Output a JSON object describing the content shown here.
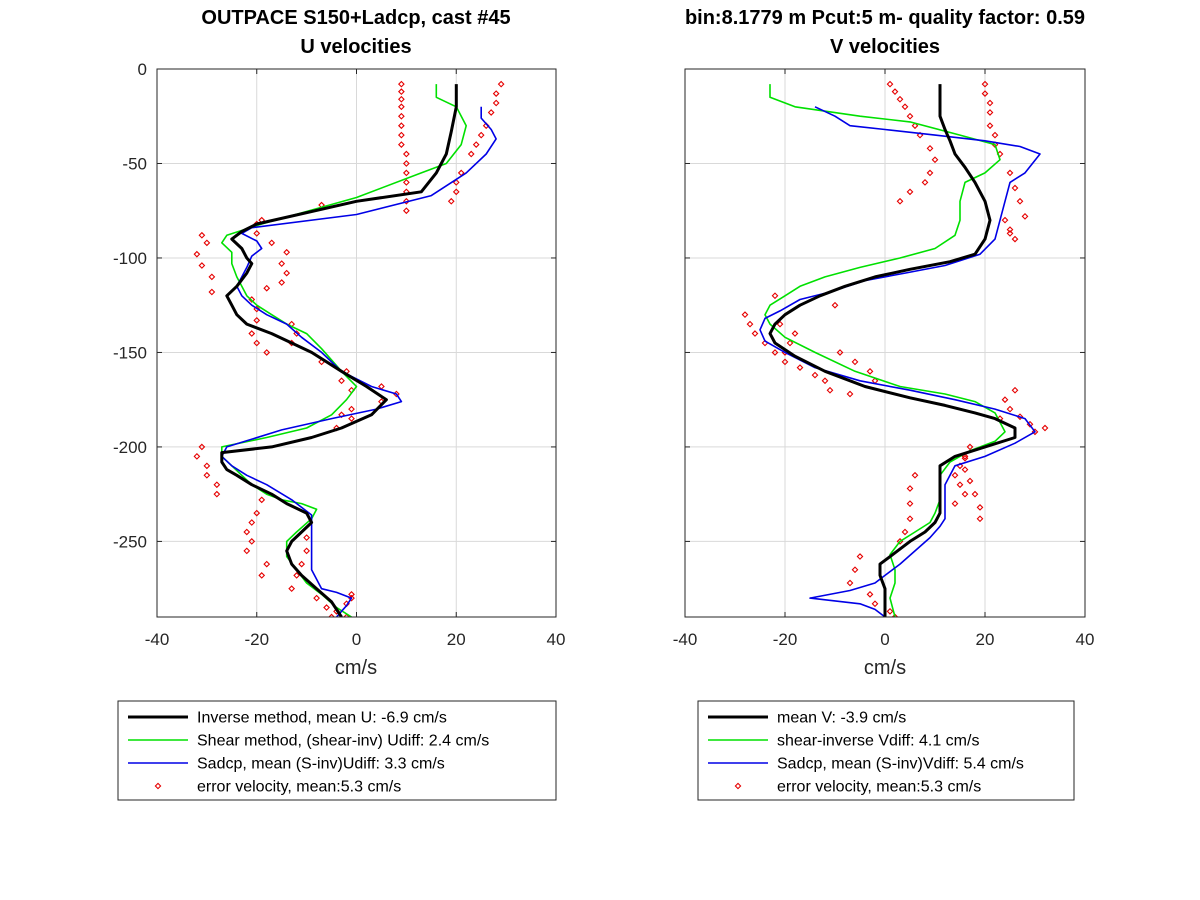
{
  "figure": {
    "left_title_line1": "OUTPACE S150+Ladcp, cast #45",
    "left_title_line2": "U velocities",
    "right_title_line1": "bin:8.1779 m  Pcut:5 m- quality factor:  0.59",
    "right_title_line2": "V velocities"
  },
  "chart_data": [
    {
      "type": "line",
      "title": "U velocities",
      "xlabel": "cm/s",
      "ylabel": "",
      "xlim": [
        -40,
        40
      ],
      "ylim": [
        -290,
        0
      ],
      "xticks": [
        "-40",
        "-20",
        "0",
        "20",
        "40"
      ],
      "yticks": [
        "0",
        "-50",
        "-100",
        "-150",
        "-200",
        "-250"
      ],
      "grid": true,
      "legend_position": "below",
      "series": [
        {
          "name": "Inverse method, mean U:  -6.9 cm/s",
          "color": "#000000",
          "style": "line",
          "x": [
            20,
            20,
            19,
            18,
            16,
            13,
            0,
            -20,
            -23,
            -25,
            -23,
            -22,
            -21,
            -22,
            -24,
            -26,
            -25,
            -24,
            -22,
            -17,
            -13,
            -9,
            -3,
            2,
            6,
            3,
            -3,
            -9,
            -17,
            -27,
            -27,
            -26,
            -24,
            -21,
            -17,
            -14,
            -10,
            -9,
            -11,
            -13,
            -14,
            -13,
            -11,
            -8,
            -5,
            -3
          ],
          "y": [
            -8,
            -20,
            -33,
            -45,
            -55,
            -65,
            -70,
            -82,
            -86,
            -90,
            -95,
            -100,
            -103,
            -108,
            -115,
            -120,
            -125,
            -130,
            -135,
            -140,
            -145,
            -150,
            -160,
            -168,
            -175,
            -183,
            -190,
            -195,
            -200,
            -203,
            -208,
            -212,
            -215,
            -220,
            -225,
            -230,
            -235,
            -240,
            -245,
            -250,
            -255,
            -262,
            -268,
            -275,
            -282,
            -290
          ]
        },
        {
          "name": "Shear method, (shear-inv)  Udiff:  2.4 cm/s",
          "color": "#00e000",
          "style": "line",
          "x": [
            16,
            16,
            20,
            22,
            21,
            18,
            13,
            0,
            -19,
            -26,
            -27,
            -25,
            -25,
            -24,
            -23,
            -22,
            -20,
            -17,
            -14,
            -10,
            -7,
            -3,
            0,
            -2,
            -5,
            -10,
            -18,
            -27,
            -27,
            -25,
            -23,
            -21,
            -18,
            -15,
            -11,
            -8,
            -9,
            -12,
            -14,
            -14,
            -12,
            -10,
            -7,
            -4,
            -1
          ],
          "y": [
            -8,
            -15,
            -20,
            -30,
            -40,
            -50,
            -55,
            -68,
            -82,
            -88,
            -92,
            -97,
            -103,
            -110,
            -115,
            -120,
            -125,
            -130,
            -135,
            -140,
            -148,
            -160,
            -168,
            -175,
            -183,
            -190,
            -195,
            -200,
            -205,
            -210,
            -215,
            -220,
            -225,
            -228,
            -230,
            -233,
            -238,
            -245,
            -250,
            -258,
            -265,
            -272,
            -278,
            -285,
            -290
          ]
        },
        {
          "name": "Sadcp, mean (S-inv)Udiff: 3.3 cm/s",
          "color": "#0000e6",
          "style": "line",
          "x": [
            25,
            25,
            27,
            28,
            26,
            22,
            15,
            0,
            -21,
            -23,
            -20,
            -19,
            -21,
            -22,
            -23,
            -24,
            -23,
            -21,
            -18,
            -14,
            -11,
            -7,
            -3,
            3,
            8,
            9,
            4,
            -5,
            -15,
            -26,
            -27,
            -25,
            -22,
            -18,
            -13,
            -9,
            -9,
            -9,
            -9,
            -8,
            -7,
            -4,
            -1,
            -2,
            -3,
            -4
          ],
          "y": [
            -20,
            -26,
            -32,
            -37,
            -45,
            -55,
            -67,
            -77,
            -84,
            -87,
            -91,
            -95,
            -99,
            -105,
            -110,
            -115,
            -120,
            -125,
            -130,
            -135,
            -142,
            -150,
            -160,
            -168,
            -172,
            -176,
            -180,
            -185,
            -191,
            -200,
            -205,
            -210,
            -215,
            -220,
            -228,
            -236,
            -245,
            -255,
            -265,
            -270,
            -275,
            -277,
            -280,
            -284,
            -287,
            -290
          ]
        },
        {
          "name": "error velocity, mean:5.3 cm/s",
          "color": "#e60000",
          "style": "markers",
          "x": [
            9,
            9,
            9,
            9,
            9,
            9,
            9,
            9,
            10,
            10,
            10,
            10,
            10,
            10,
            10,
            29,
            28,
            28,
            27,
            26,
            25,
            24,
            23,
            21,
            20,
            20,
            19,
            -7,
            -19,
            -20,
            -20,
            -17,
            -14,
            -15,
            -14,
            -15,
            -18,
            -31,
            -30,
            -32,
            -31,
            -29,
            -29,
            -21,
            -20,
            -20,
            -21,
            -20,
            -18,
            -13,
            -12,
            -13,
            -7,
            -2,
            -3,
            -1,
            5,
            8,
            5,
            -1,
            -3,
            -1,
            -4,
            -31,
            -32,
            -30,
            -30,
            -28,
            -28,
            -19,
            -20,
            -21,
            -22,
            -21,
            -22,
            -18,
            -19,
            -10,
            -10,
            -11,
            -12,
            -13,
            -8,
            -6,
            -5,
            -2,
            -4,
            -2,
            -1,
            -1
          ],
          "y": [
            -8,
            -12,
            -16,
            -20,
            -25,
            -30,
            -35,
            -40,
            -45,
            -50,
            -55,
            -60,
            -65,
            -70,
            -75,
            -8,
            -13,
            -18,
            -23,
            -30,
            -35,
            -40,
            -45,
            -55,
            -60,
            -65,
            -70,
            -72,
            -80,
            -82,
            -87,
            -92,
            -97,
            -103,
            -108,
            -113,
            -116,
            -88,
            -92,
            -98,
            -104,
            -110,
            -118,
            -122,
            -127,
            -133,
            -140,
            -145,
            -150,
            -135,
            -140,
            -145,
            -155,
            -160,
            -165,
            -170,
            -168,
            -172,
            -176,
            -180,
            -183,
            -185,
            -190,
            -200,
            -205,
            -210,
            -215,
            -220,
            -225,
            -228,
            -235,
            -240,
            -245,
            -250,
            -255,
            -262,
            -268,
            -248,
            -255,
            -262,
            -268,
            -275,
            -280,
            -285,
            -290,
            -290,
            -287,
            -283,
            -280,
            -278
          ]
        }
      ]
    },
    {
      "type": "line",
      "title": "V velocities",
      "xlabel": "cm/s",
      "ylabel": "",
      "xlim": [
        -40,
        40
      ],
      "ylim": [
        -290,
        0
      ],
      "xticks": [
        "-40",
        "-20",
        "0",
        "20",
        "40"
      ],
      "yticks": [],
      "grid": true,
      "legend_position": "below",
      "series": [
        {
          "name": "mean V:  -3.9 cm/s",
          "color": "#000000",
          "style": "line",
          "x": [
            11,
            11,
            11,
            12,
            13,
            14,
            16,
            18,
            20,
            21,
            20,
            18,
            13,
            5,
            -2,
            -8,
            -13,
            -17,
            -20,
            -22,
            -23,
            -22,
            -18,
            -12,
            -4,
            5,
            12,
            18,
            22,
            26,
            26,
            20,
            14,
            11,
            11,
            11,
            11,
            10,
            8,
            5,
            2,
            -1,
            -1,
            0,
            0,
            0
          ],
          "y": [
            -8,
            -15,
            -25,
            -32,
            -38,
            -45,
            -52,
            -60,
            -70,
            -80,
            -90,
            -98,
            -102,
            -106,
            -110,
            -115,
            -120,
            -125,
            -130,
            -135,
            -140,
            -145,
            -152,
            -160,
            -168,
            -174,
            -178,
            -182,
            -185,
            -190,
            -195,
            -200,
            -205,
            -210,
            -220,
            -228,
            -235,
            -240,
            -245,
            -250,
            -256,
            -262,
            -268,
            -275,
            -283,
            -290
          ]
        },
        {
          "name": "shear-inverse Vdiff:  4.1 cm/s",
          "color": "#00e000",
          "style": "line",
          "x": [
            -23,
            -23,
            -18,
            -5,
            5,
            15,
            22,
            23,
            20,
            16,
            15,
            15,
            14,
            10,
            3,
            -5,
            -12,
            -17,
            -20,
            -23,
            -24,
            -23,
            -20,
            -14,
            -6,
            3,
            12,
            18,
            22,
            24,
            22,
            17,
            13,
            11,
            11,
            11,
            10,
            9,
            6,
            3,
            1,
            2,
            2,
            1,
            2
          ],
          "y": [
            -8,
            -15,
            -20,
            -25,
            -28,
            -35,
            -40,
            -48,
            -55,
            -60,
            -70,
            -80,
            -88,
            -95,
            -100,
            -105,
            -110,
            -115,
            -120,
            -125,
            -130,
            -135,
            -142,
            -150,
            -160,
            -168,
            -172,
            -176,
            -182,
            -192,
            -197,
            -202,
            -208,
            -215,
            -222,
            -228,
            -235,
            -240,
            -245,
            -250,
            -257,
            -265,
            -272,
            -280,
            -290
          ]
        },
        {
          "name": "Sadcp, mean (S-inv)Vdiff: 5.4 cm/s",
          "color": "#0000e6",
          "style": "line",
          "x": [
            -14,
            -10,
            -7,
            0,
            10,
            20,
            27,
            31,
            28,
            25,
            24,
            23,
            22,
            19,
            12,
            4,
            -4,
            -11,
            -17,
            -21,
            -24,
            -25,
            -24,
            -20,
            -14,
            -5,
            5,
            14,
            22,
            28,
            30,
            26,
            20,
            14,
            12,
            12,
            12,
            11,
            9,
            6,
            3,
            0,
            -2,
            -7,
            -15,
            -5,
            -2,
            0
          ],
          "y": [
            -20,
            -25,
            -30,
            -32,
            -35,
            -38,
            -41,
            -45,
            -55,
            -60,
            -70,
            -80,
            -90,
            -98,
            -104,
            -108,
            -112,
            -118,
            -122,
            -128,
            -132,
            -138,
            -144,
            -150,
            -158,
            -165,
            -170,
            -175,
            -180,
            -185,
            -192,
            -198,
            -205,
            -210,
            -220,
            -230,
            -238,
            -242,
            -248,
            -255,
            -262,
            -268,
            -272,
            -276,
            -280,
            -283,
            -286,
            -290
          ]
        },
        {
          "name": "error velocity, mean:5.3 cm/s",
          "color": "#e60000",
          "style": "markers",
          "x": [
            1,
            2,
            3,
            4,
            5,
            6,
            7,
            9,
            10,
            9,
            8,
            5,
            3,
            20,
            20,
            21,
            21,
            21,
            22,
            22,
            23,
            25,
            26,
            27,
            28,
            -28,
            -27,
            -26,
            -24,
            -22,
            -20,
            -17,
            -14,
            -12,
            -11,
            -7,
            -20,
            -19,
            -18,
            -21,
            -22,
            -10,
            -9,
            -6,
            -3,
            -2,
            25,
            27,
            29,
            30,
            32,
            26,
            24,
            23,
            16,
            15,
            14,
            15,
            16,
            14,
            6,
            5,
            5,
            5,
            4,
            3,
            -5,
            -6,
            -7,
            -3,
            -2,
            1,
            2,
            17,
            16,
            16,
            17,
            18,
            19,
            19,
            24,
            25,
            25,
            26
          ],
          "y": [
            -8,
            -12,
            -16,
            -20,
            -25,
            -30,
            -35,
            -42,
            -48,
            -55,
            -60,
            -65,
            -70,
            -8,
            -13,
            -18,
            -23,
            -30,
            -35,
            -40,
            -45,
            -55,
            -63,
            -70,
            -78,
            -130,
            -135,
            -140,
            -145,
            -150,
            -155,
            -158,
            -162,
            -165,
            -170,
            -172,
            -150,
            -145,
            -140,
            -135,
            -120,
            -125,
            -150,
            -155,
            -160,
            -165,
            -180,
            -184,
            -188,
            -192,
            -190,
            -170,
            -175,
            -185,
            -205,
            -210,
            -215,
            -220,
            -225,
            -230,
            -215,
            -222,
            -230,
            -238,
            -245,
            -250,
            -258,
            -265,
            -272,
            -278,
            -283,
            -287,
            -290,
            -200,
            -206,
            -212,
            -218,
            -225,
            -232,
            -238,
            -80,
            -85,
            -87,
            -90
          ]
        }
      ]
    }
  ]
}
